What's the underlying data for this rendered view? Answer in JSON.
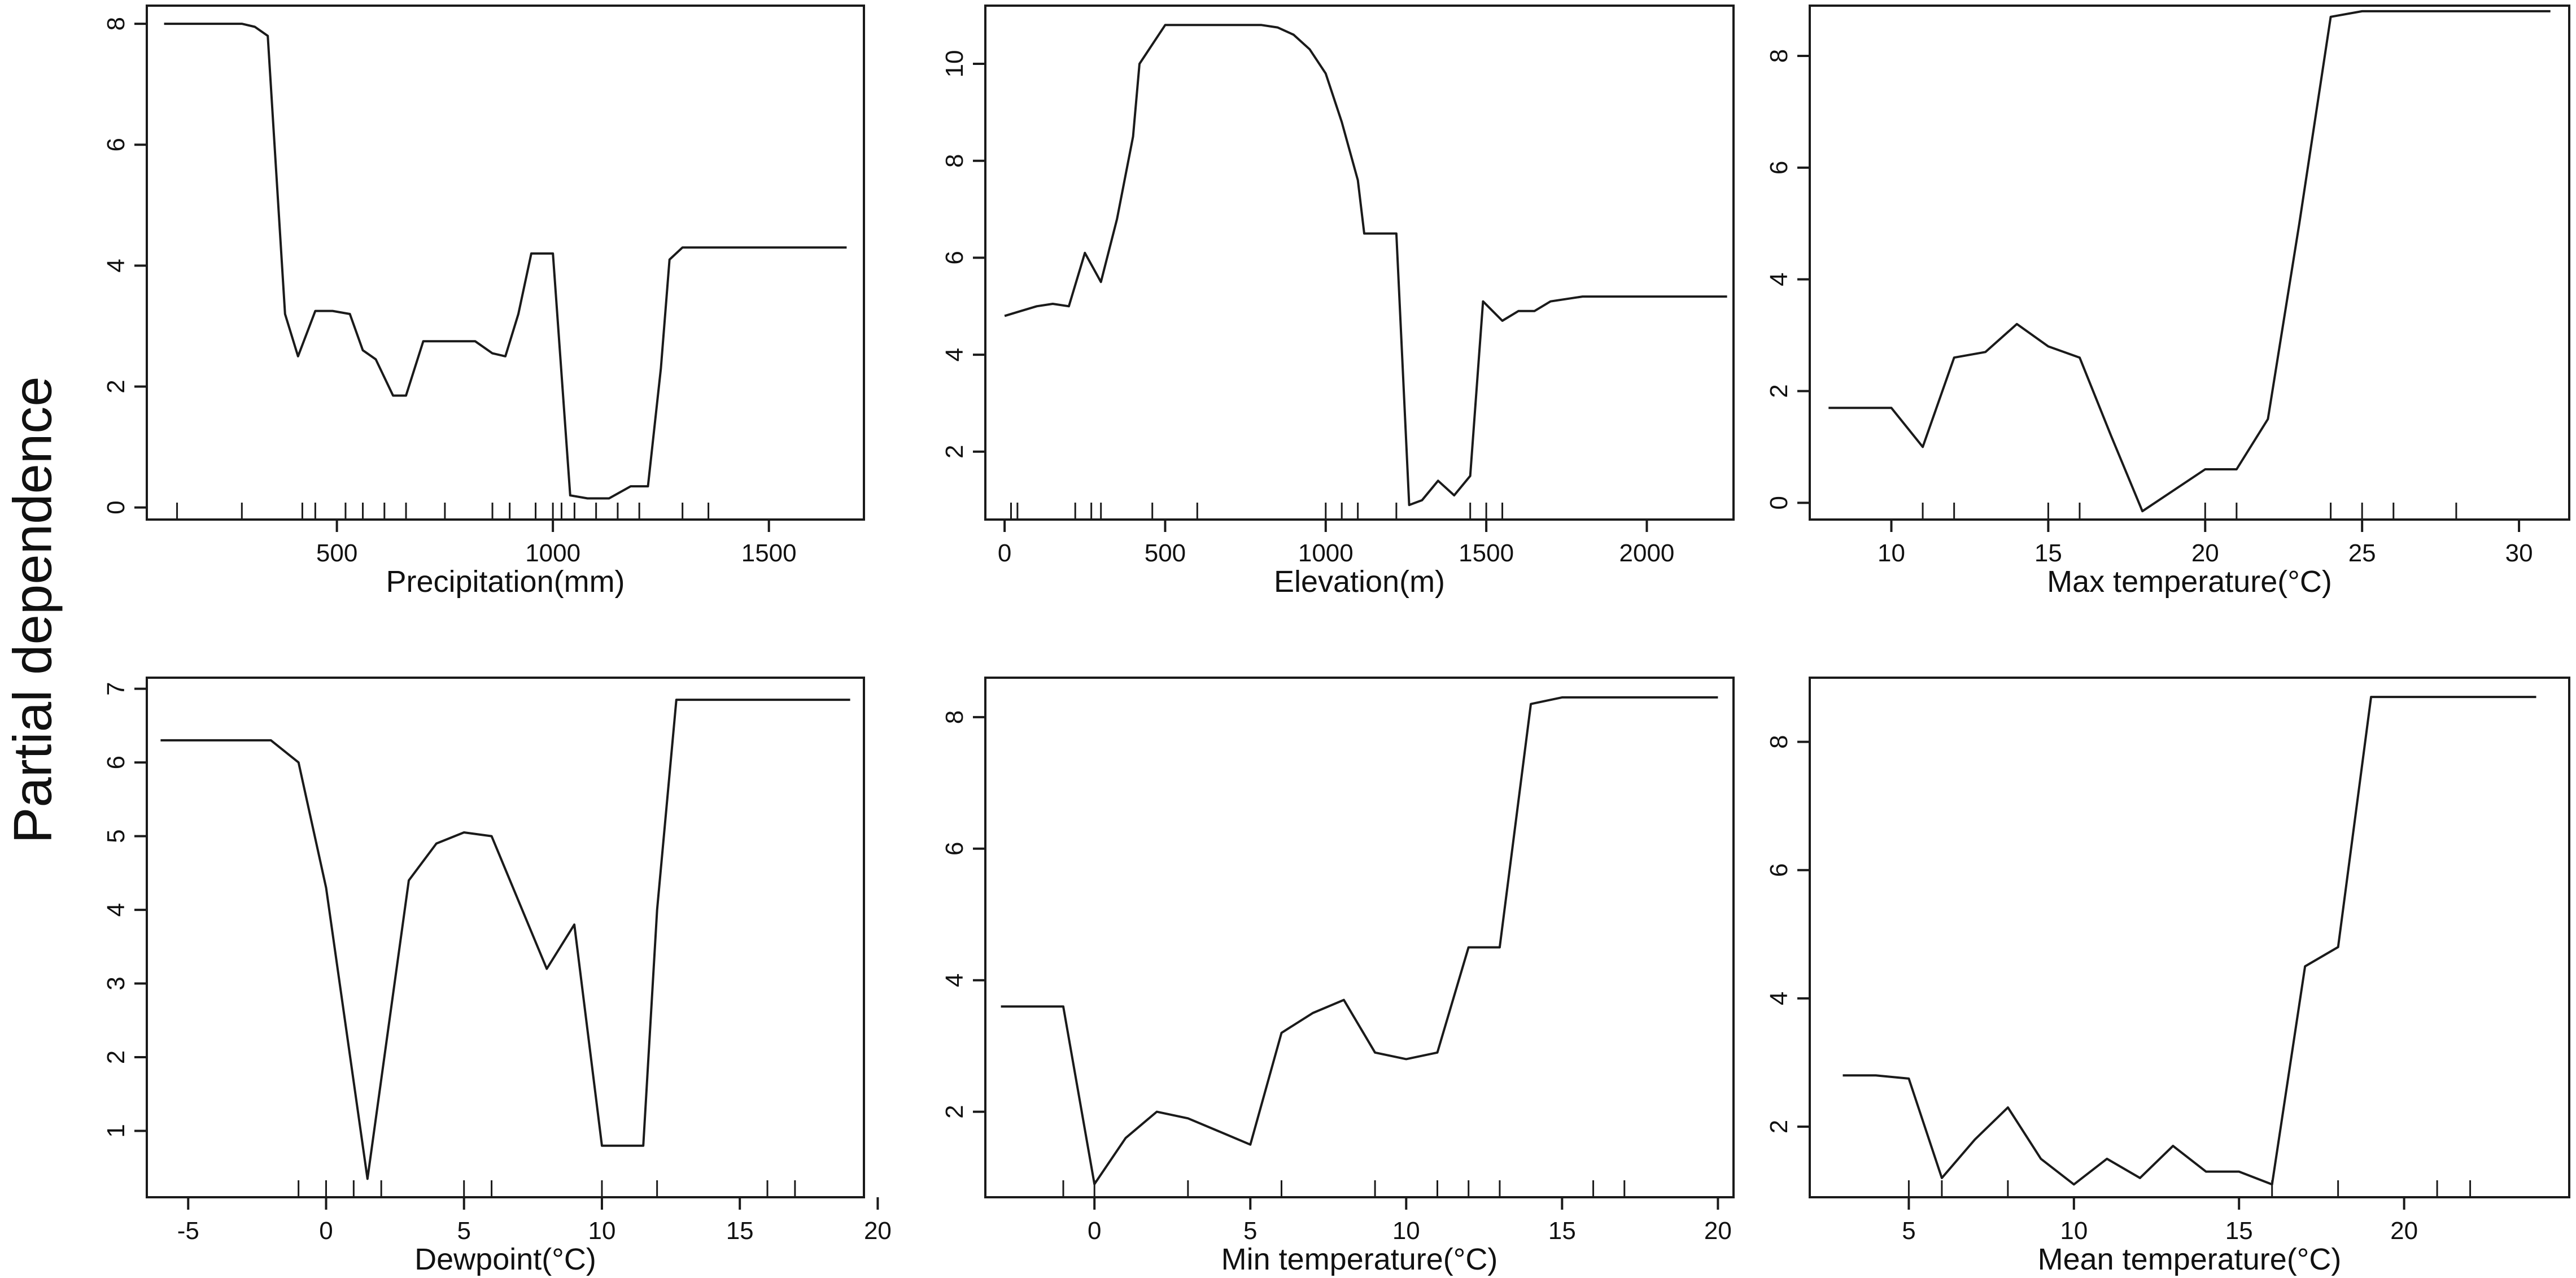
{
  "figure": {
    "ylabel": "Partial dependence",
    "line_color": "#1a1a1a",
    "background": "#ffffff"
  },
  "chart_data": [
    {
      "type": "line",
      "xlabel": "Precipitation(mm)",
      "ylabel": "",
      "xlim": [
        60,
        1720
      ],
      "ylim": [
        -0.2,
        8.3
      ],
      "xticks": [
        500,
        1000,
        1500
      ],
      "yticks": [
        0,
        2,
        4,
        6,
        8
      ],
      "rug": [
        130,
        280,
        420,
        450,
        520,
        560,
        610,
        660,
        750,
        860,
        900,
        960,
        1000,
        1020,
        1050,
        1100,
        1150,
        1200,
        1300,
        1360
      ],
      "x": [
        100,
        280,
        310,
        340,
        360,
        380,
        410,
        450,
        490,
        530,
        560,
        590,
        630,
        660,
        700,
        760,
        820,
        860,
        890,
        920,
        950,
        990,
        1000,
        1040,
        1080,
        1130,
        1180,
        1220,
        1250,
        1270,
        1300,
        1680
      ],
      "y": [
        8.0,
        8.0,
        7.95,
        7.8,
        5.5,
        3.2,
        2.5,
        3.25,
        3.25,
        3.2,
        2.6,
        2.45,
        1.85,
        1.85,
        2.75,
        2.75,
        2.75,
        2.55,
        2.5,
        3.2,
        4.2,
        4.2,
        4.2,
        0.2,
        0.15,
        0.15,
        0.35,
        0.35,
        2.3,
        4.1,
        4.3,
        4.3
      ]
    },
    {
      "type": "line",
      "xlabel": "Elevation(m)",
      "ylabel": "",
      "xlim": [
        -60,
        2270
      ],
      "ylim": [
        0.6,
        11.2
      ],
      "xticks": [
        0,
        500,
        1000,
        1500,
        2000
      ],
      "yticks": [
        2,
        4,
        6,
        8,
        10
      ],
      "rug": [
        20,
        40,
        220,
        270,
        300,
        460,
        600,
        1000,
        1050,
        1100,
        1220,
        1450,
        1500,
        1550
      ],
      "x": [
        0,
        50,
        100,
        150,
        200,
        250,
        300,
        350,
        400,
        420,
        500,
        750,
        800,
        850,
        900,
        950,
        1000,
        1050,
        1100,
        1120,
        1200,
        1220,
        1260,
        1300,
        1350,
        1400,
        1450,
        1490,
        1550,
        1600,
        1650,
        1700,
        1800,
        2250
      ],
      "y": [
        4.8,
        4.9,
        5.0,
        5.05,
        5.0,
        6.1,
        5.5,
        6.8,
        8.5,
        10.0,
        10.8,
        10.8,
        10.8,
        10.75,
        10.6,
        10.3,
        9.8,
        8.8,
        7.6,
        6.5,
        6.5,
        6.5,
        0.9,
        1.0,
        1.4,
        1.1,
        1.5,
        5.1,
        4.7,
        4.9,
        4.9,
        5.1,
        5.2,
        5.2
      ]
    },
    {
      "type": "line",
      "xlabel": "Max temperature(°C)",
      "ylabel": "",
      "xlim": [
        7.4,
        31.6
      ],
      "ylim": [
        -0.3,
        8.9
      ],
      "xticks": [
        10,
        15,
        20,
        25,
        30
      ],
      "yticks": [
        0,
        2,
        4,
        6,
        8
      ],
      "rug": [
        11,
        12,
        15,
        16,
        20,
        21,
        24,
        25,
        26,
        28
      ],
      "x": [
        8,
        10,
        11,
        12,
        13,
        14,
        15,
        16,
        17,
        18,
        20,
        21,
        22,
        23,
        24,
        25,
        31
      ],
      "y": [
        1.7,
        1.7,
        1.0,
        2.6,
        2.7,
        3.2,
        2.8,
        2.6,
        1.2,
        -0.15,
        0.6,
        0.6,
        1.5,
        5.0,
        8.7,
        8.8,
        8.8
      ]
    },
    {
      "type": "line",
      "xlabel": "Dewpoint(°C)",
      "ylabel": "",
      "xlim": [
        -6.5,
        19.5
      ],
      "ylim": [
        0.1,
        7.15
      ],
      "xticks": [
        -5,
        0,
        5,
        10,
        15,
        20
      ],
      "yticks": [
        1,
        2,
        3,
        4,
        5,
        6,
        7
      ],
      "rug": [
        -1,
        0,
        1,
        2,
        5,
        6,
        10,
        12,
        16,
        17
      ],
      "x": [
        -6,
        -2,
        -1,
        0,
        1.5,
        3,
        4,
        5,
        6,
        7,
        8,
        9,
        10,
        11,
        11.5,
        12,
        12.7,
        19
      ],
      "y": [
        6.3,
        6.3,
        6.0,
        4.3,
        0.35,
        4.4,
        4.9,
        5.05,
        5.0,
        4.1,
        3.2,
        3.8,
        0.8,
        0.8,
        0.8,
        4.0,
        6.85,
        6.85
      ]
    },
    {
      "type": "line",
      "xlabel": "Min temperature(°C)",
      "ylabel": "",
      "xlim": [
        -3.5,
        20.5
      ],
      "ylim": [
        0.7,
        8.6
      ],
      "xticks": [
        0,
        5,
        10,
        15,
        20
      ],
      "yticks": [
        2,
        4,
        6,
        8
      ],
      "rug": [
        -1,
        0,
        3,
        6,
        9,
        11,
        12,
        13,
        16,
        17
      ],
      "x": [
        -3,
        -2,
        -1,
        0,
        1,
        2,
        3,
        4,
        5,
        6,
        7,
        8,
        9,
        10,
        11,
        12,
        13,
        14,
        15,
        20
      ],
      "y": [
        3.6,
        3.6,
        3.6,
        0.9,
        1.6,
        2.0,
        1.9,
        1.7,
        1.5,
        3.2,
        3.5,
        3.7,
        2.9,
        2.8,
        2.9,
        4.5,
        4.5,
        8.2,
        8.3,
        8.3
      ]
    },
    {
      "type": "line",
      "xlabel": "Mean temperature(°C)",
      "ylabel": "",
      "xlim": [
        2,
        25
      ],
      "ylim": [
        0.9,
        9.0
      ],
      "xticks": [
        5,
        10,
        15,
        20
      ],
      "yticks": [
        2,
        4,
        6,
        8
      ],
      "rug": [
        5,
        6,
        8,
        16,
        18,
        21,
        22
      ],
      "x": [
        3,
        4,
        5,
        6,
        7,
        8,
        9,
        10,
        11,
        12,
        13,
        14,
        15,
        16,
        17,
        18,
        19,
        24
      ],
      "y": [
        2.8,
        2.8,
        2.75,
        1.2,
        1.8,
        2.3,
        1.5,
        1.1,
        1.5,
        1.2,
        1.7,
        1.3,
        1.3,
        1.1,
        4.5,
        4.8,
        8.7,
        8.7
      ]
    }
  ]
}
